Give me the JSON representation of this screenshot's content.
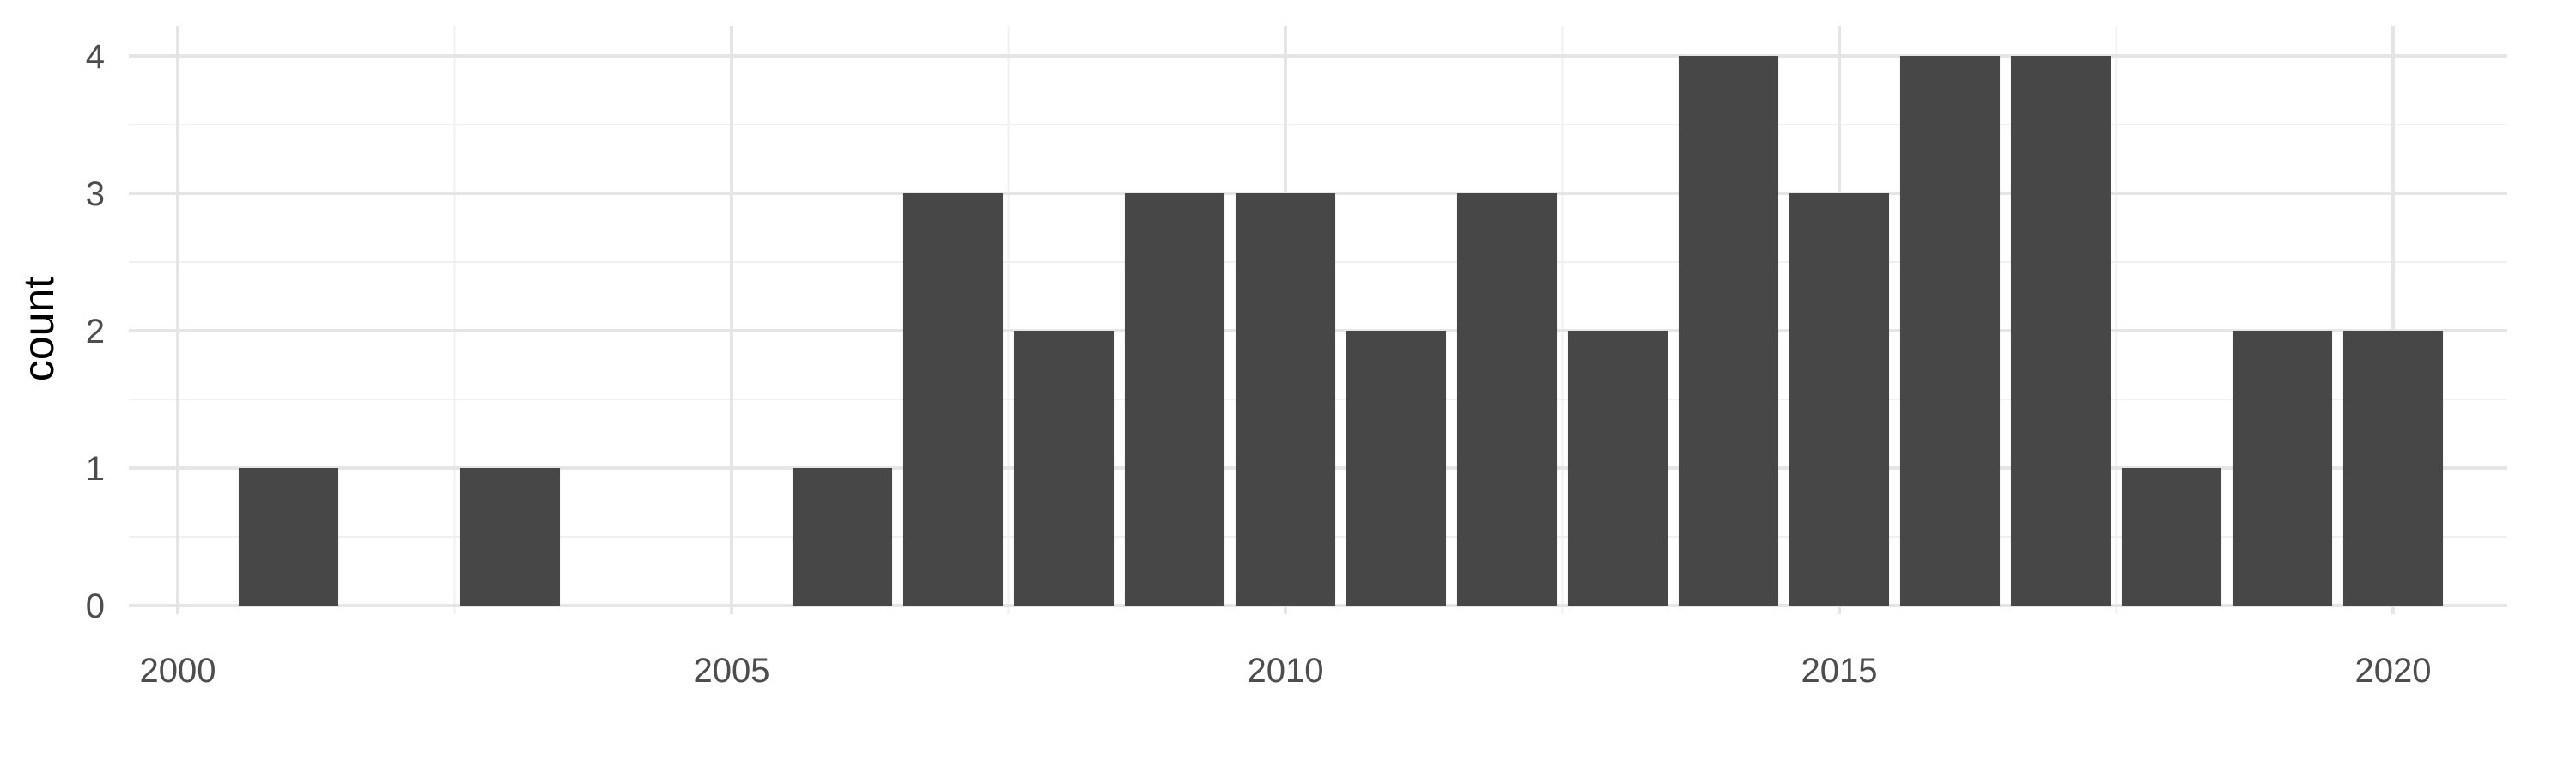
{
  "chart_data": {
    "type": "bar",
    "title": "",
    "xlabel": "",
    "ylabel": "count",
    "x": [
      2001,
      2003,
      2006,
      2007,
      2008,
      2009,
      2010,
      2011,
      2012,
      2013,
      2014,
      2015,
      2016,
      2017,
      2018,
      2019,
      2020
    ],
    "values": [
      1,
      1,
      1,
      3,
      2,
      3,
      3,
      2,
      3,
      2,
      4,
      3,
      4,
      4,
      1,
      2,
      2
    ],
    "xlim": [
      1999.5,
      2021.5
    ],
    "ylim": [
      0,
      4.2
    ],
    "x_ticks": [
      2000,
      2005,
      2010,
      2015,
      2020
    ],
    "y_ticks": [
      0,
      1,
      2,
      3,
      4
    ],
    "grid": true,
    "legend": "none",
    "colors": {
      "bar": "#474747",
      "grid_major": "#e5e5e5",
      "grid_minor": "#f0f0f0",
      "background": "#ffffff"
    }
  }
}
